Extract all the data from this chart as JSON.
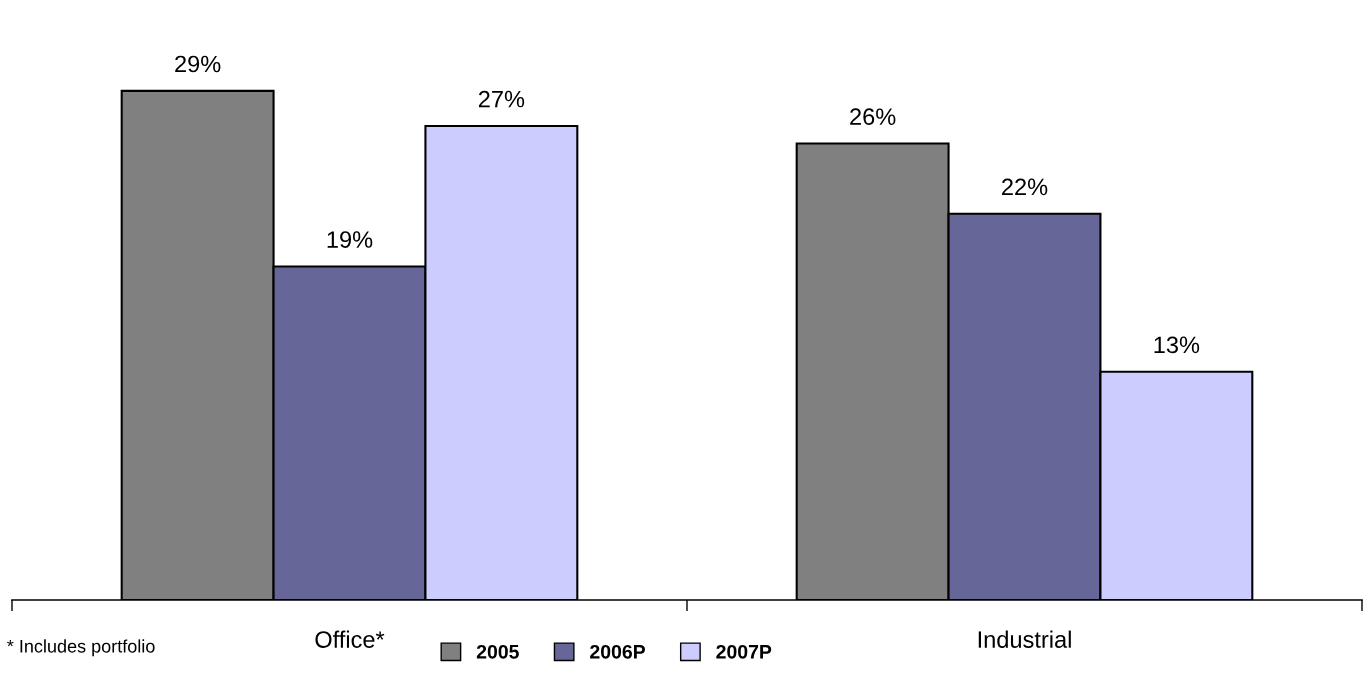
{
  "chart_data": {
    "type": "bar",
    "categories": [
      "Office*",
      "Industrial"
    ],
    "series": [
      {
        "name": "2005",
        "color": "#808080",
        "values": [
          29,
          26
        ],
        "value_labels": [
          "29%",
          "26%"
        ]
      },
      {
        "name": "2006P",
        "color": "#666699",
        "values": [
          19,
          22
        ],
        "value_labels": [
          "19%",
          "22%"
        ]
      },
      {
        "name": "2007P",
        "color": "#ccccff",
        "values": [
          27,
          13
        ],
        "value_labels": [
          "27%",
          "13%"
        ]
      }
    ],
    "tick_labels": "x",
    "grid": false,
    "legend": "bottom",
    "annotations": [
      "* Includes portfolio"
    ]
  }
}
